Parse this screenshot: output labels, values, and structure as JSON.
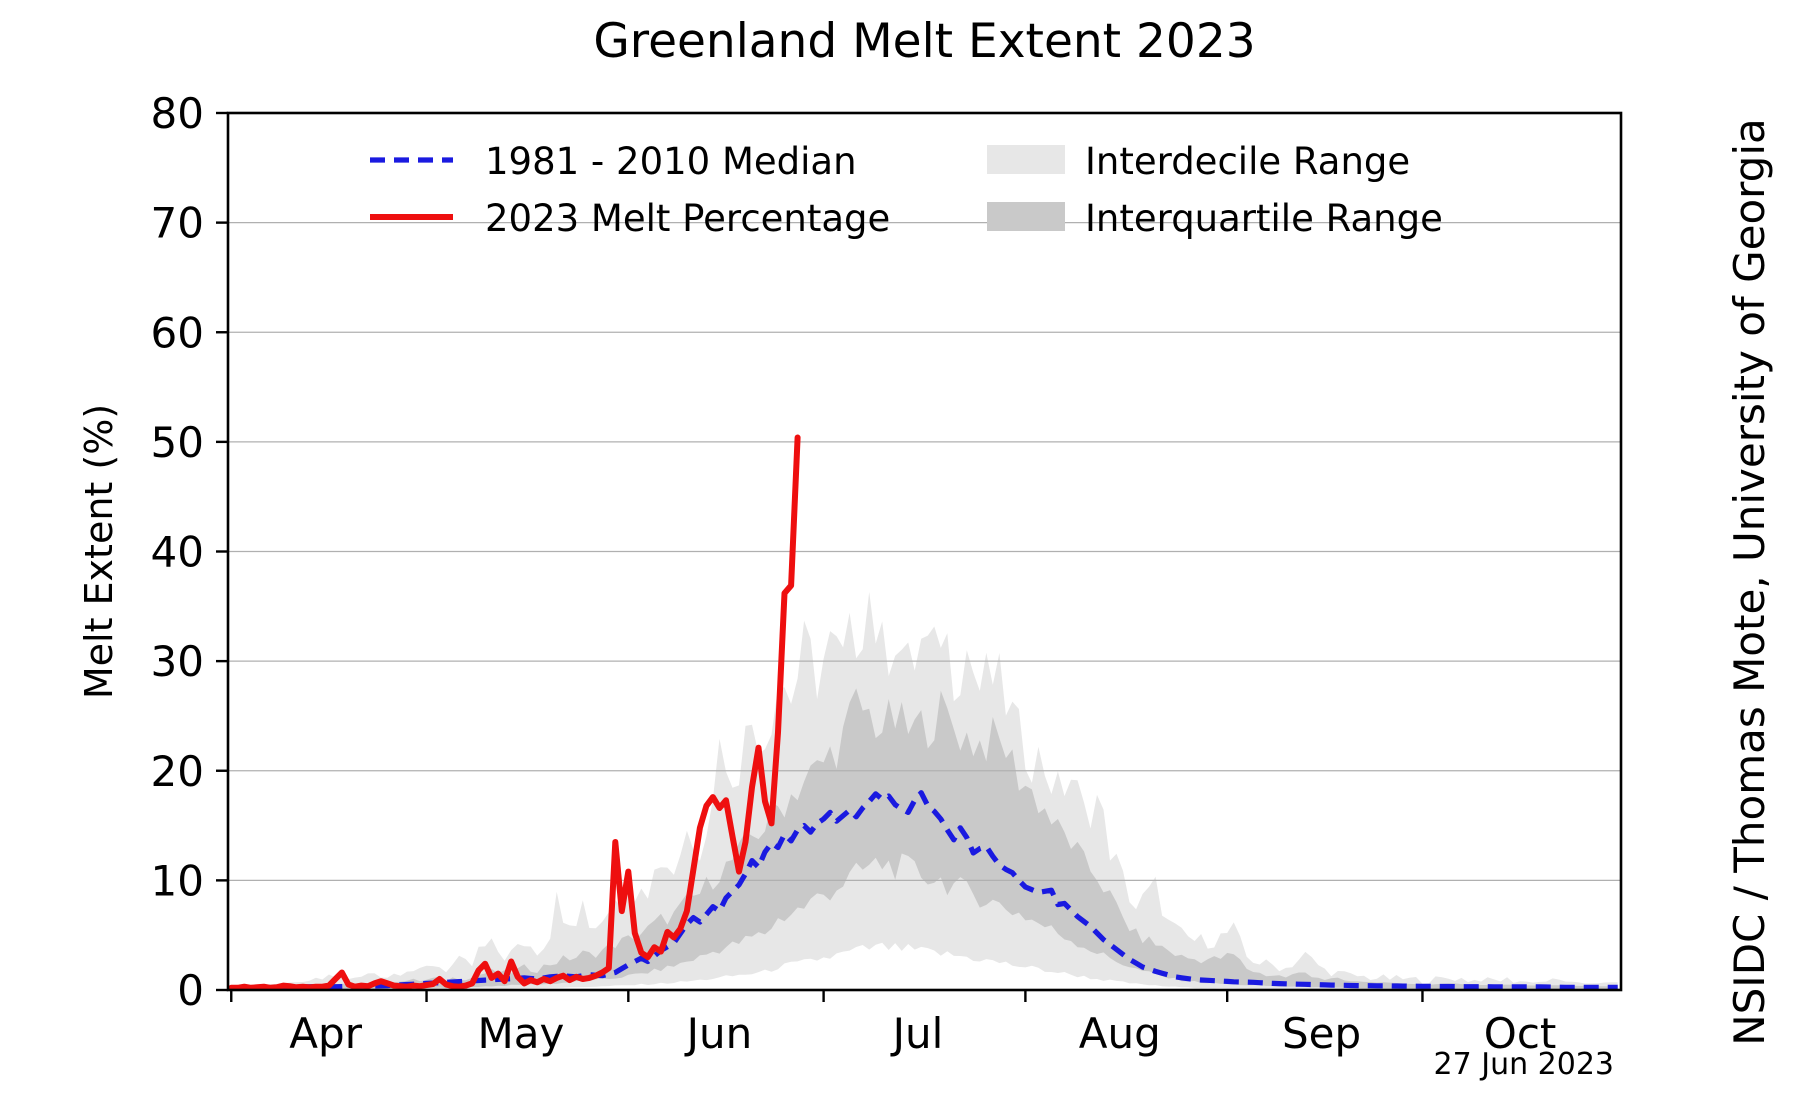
{
  "labels": {
    "title": "Greenland Melt Extent 2023",
    "y_axis_label": "Melt Extent (%)",
    "credit": "NSIDC / Thomas Mote, University of Georgia",
    "datestamp": "27 Jun 2023"
  },
  "legend": {
    "items": [
      {
        "label": "1981 - 2010 Median",
        "type": "dashed-line",
        "color": "#1a1ae0"
      },
      {
        "label": "2023 Melt Percentage",
        "type": "solid-line",
        "color": "#ee0f0f"
      },
      {
        "label": "Interdecile Range",
        "type": "patch",
        "color": "#e7e7e7"
      },
      {
        "label": "Interquartile Range",
        "type": "patch",
        "color": "#c9c9c9"
      }
    ]
  },
  "axes": {
    "y_ticks": [
      "0",
      "10",
      "20",
      "30",
      "40",
      "50",
      "60",
      "70",
      "80"
    ],
    "x_ticklabels": [
      "Apr",
      "May",
      "Jun",
      "Jul",
      "Aug",
      "Sep",
      "Oct"
    ],
    "ylim": [
      0,
      80
    ],
    "grid": "horizontal-only"
  },
  "colors": {
    "median_line": "#1a1ae0",
    "melt_line": "#ee0f0f",
    "interdecile_fill": "#e7e7e7",
    "interquartile_fill": "#c9c9c9",
    "gridline": "#b0b0b0",
    "axis": "#000000",
    "background": "#ffffff"
  },
  "chart_data": {
    "type": "line",
    "title": "Greenland Melt Extent 2023",
    "xlabel": "",
    "ylabel": "Melt Extent (%)",
    "ylim": [
      0,
      80
    ],
    "x_domain_days": 214,
    "x_start_date": "2023-04-01",
    "x_end_date": "2023-10-31",
    "month_tick_day_index": [
      0,
      30,
      61,
      91,
      122,
      153,
      183
    ],
    "month_label_day_index": [
      14.5,
      44.5,
      75,
      105.5,
      136.5,
      167.5,
      198
    ],
    "legend_position": "upper-left-inside",
    "series": [
      {
        "name": "2023 Melt Percentage",
        "style": "solid",
        "start_day": 0,
        "daily_values": [
          0.2,
          0.2,
          0.3,
          0.2,
          0.25,
          0.3,
          0.2,
          0.25,
          0.4,
          0.35,
          0.25,
          0.3,
          0.25,
          0.3,
          0.3,
          0.4,
          1.0,
          1.6,
          0.5,
          0.3,
          0.4,
          0.35,
          0.6,
          0.8,
          0.6,
          0.4,
          0.35,
          0.3,
          0.4,
          0.35,
          0.45,
          0.55,
          1.0,
          0.5,
          0.35,
          0.3,
          0.4,
          0.6,
          1.8,
          2.4,
          1.1,
          1.5,
          0.8,
          2.6,
          1.2,
          0.6,
          0.9,
          0.7,
          1.0,
          0.8,
          1.1,
          1.3,
          0.9,
          1.2,
          1.0,
          1.1,
          1.3,
          1.6,
          2.0,
          13.5,
          7.2,
          10.8,
          5.2,
          3.4,
          3.0,
          3.9,
          3.5,
          5.3,
          4.8,
          5.6,
          7.2,
          11.0,
          14.8,
          16.8,
          17.6,
          16.6,
          17.3,
          14.0,
          10.8,
          13.5,
          18.5,
          22.1,
          17.2,
          15.2,
          23.5,
          36.2,
          36.9,
          50.4
        ]
      },
      {
        "name": "1981 - 2010 Median",
        "style": "dashed",
        "keypoints_day_value": [
          [
            0,
            0.2
          ],
          [
            4,
            0.2
          ],
          [
            8,
            0.25
          ],
          [
            12,
            0.3
          ],
          [
            16,
            0.3
          ],
          [
            20,
            0.35
          ],
          [
            24,
            0.4
          ],
          [
            27,
            0.5
          ],
          [
            30,
            0.6
          ],
          [
            33,
            0.7
          ],
          [
            36,
            0.8
          ],
          [
            39,
            0.9
          ],
          [
            42,
            1.0
          ],
          [
            45,
            1.1
          ],
          [
            47,
            1.0
          ],
          [
            49,
            1.2
          ],
          [
            51,
            1.3
          ],
          [
            53,
            1.2
          ],
          [
            55,
            1.4
          ],
          [
            57,
            1.3
          ],
          [
            59,
            1.6
          ],
          [
            61,
            2.3
          ],
          [
            63,
            2.9
          ],
          [
            64,
            2.6
          ],
          [
            66,
            3.6
          ],
          [
            68,
            4.3
          ],
          [
            70,
            6.0
          ],
          [
            71,
            6.6
          ],
          [
            72,
            6.2
          ],
          [
            74,
            7.6
          ],
          [
            75,
            7.2
          ],
          [
            76,
            8.4
          ],
          [
            78,
            9.6
          ],
          [
            79,
            10.6
          ],
          [
            80,
            11.8
          ],
          [
            81,
            11.2
          ],
          [
            82,
            12.6
          ],
          [
            83,
            13.4
          ],
          [
            84,
            13.0
          ],
          [
            85,
            14.2
          ],
          [
            86,
            13.6
          ],
          [
            87,
            14.6
          ],
          [
            88,
            15.0
          ],
          [
            89,
            14.4
          ],
          [
            90,
            15.2
          ],
          [
            91,
            15.6
          ],
          [
            92,
            16.2
          ],
          [
            93,
            15.4
          ],
          [
            94,
            15.9
          ],
          [
            95,
            16.4
          ],
          [
            96,
            15.8
          ],
          [
            97,
            16.6
          ],
          [
            98,
            17.2
          ],
          [
            99,
            17.9
          ],
          [
            100,
            17.4
          ],
          [
            101,
            17.7
          ],
          [
            102,
            16.9
          ],
          [
            103,
            16.5
          ],
          [
            104,
            16.2
          ],
          [
            105,
            17.3
          ],
          [
            106,
            18.0
          ],
          [
            107,
            16.8
          ],
          [
            108,
            16.3
          ],
          [
            109,
            15.6
          ],
          [
            110,
            14.6
          ],
          [
            111,
            13.7
          ],
          [
            112,
            14.8
          ],
          [
            113,
            13.9
          ],
          [
            114,
            12.5
          ],
          [
            115,
            12.9
          ],
          [
            116,
            13.1
          ],
          [
            117,
            12.2
          ],
          [
            118,
            11.4
          ],
          [
            119,
            11.0
          ],
          [
            120,
            10.7
          ],
          [
            121,
            10.0
          ],
          [
            122,
            9.4
          ],
          [
            124,
            8.9
          ],
          [
            126,
            9.1
          ],
          [
            127,
            7.8
          ],
          [
            128,
            7.9
          ],
          [
            129,
            7.3
          ],
          [
            130,
            6.7
          ],
          [
            132,
            5.8
          ],
          [
            134,
            4.6
          ],
          [
            136,
            3.7
          ],
          [
            138,
            2.8
          ],
          [
            140,
            2.1
          ],
          [
            142,
            1.7
          ],
          [
            145,
            1.2
          ],
          [
            148,
            0.95
          ],
          [
            151,
            0.85
          ],
          [
            154,
            0.75
          ],
          [
            157,
            0.7
          ],
          [
            160,
            0.6
          ],
          [
            163,
            0.55
          ],
          [
            166,
            0.5
          ],
          [
            169,
            0.45
          ],
          [
            173,
            0.4
          ],
          [
            177,
            0.38
          ],
          [
            181,
            0.35
          ],
          [
            185,
            0.33
          ],
          [
            189,
            0.3
          ],
          [
            193,
            0.3
          ],
          [
            197,
            0.28
          ],
          [
            201,
            0.28
          ],
          [
            205,
            0.25
          ],
          [
            209,
            0.25
          ],
          [
            213,
            0.25
          ]
        ]
      }
    ],
    "bands": {
      "description": "keypoints [day, interdecile_top, interquartile_top, interquartile_bottom, interdecile_bottom] in percent",
      "keypoints": [
        [
          0,
          0.4,
          0.2,
          0,
          0
        ],
        [
          4,
          0.45,
          0.25,
          0,
          0
        ],
        [
          8,
          0.6,
          0.3,
          0,
          0
        ],
        [
          12,
          0.8,
          0.4,
          0.05,
          0
        ],
        [
          15,
          1.1,
          0.5,
          0.05,
          0
        ],
        [
          17,
          1.3,
          0.55,
          0.08,
          0
        ],
        [
          19,
          0.95,
          0.5,
          0.08,
          0
        ],
        [
          22,
          1.6,
          0.7,
          0.1,
          0
        ],
        [
          24,
          1.25,
          0.65,
          0.1,
          0
        ],
        [
          27,
          2.0,
          0.85,
          0.12,
          0
        ],
        [
          29,
          1.6,
          0.8,
          0.15,
          0.05
        ],
        [
          31,
          2.4,
          1.0,
          0.2,
          0.05
        ],
        [
          33,
          1.9,
          0.95,
          0.2,
          0.05
        ],
        [
          35,
          2.6,
          1.2,
          0.25,
          0.08
        ],
        [
          37,
          2.2,
          1.1,
          0.28,
          0.08
        ],
        [
          38,
          3.6,
          1.4,
          0.3,
          0.1
        ],
        [
          40,
          4.1,
          1.65,
          0.35,
          0.1
        ],
        [
          42,
          3.0,
          1.5,
          0.4,
          0.12
        ],
        [
          44,
          3.8,
          1.8,
          0.45,
          0.15
        ],
        [
          45,
          4.3,
          2.0,
          0.5,
          0.15
        ],
        [
          47,
          3.6,
          1.9,
          0.5,
          0.18
        ],
        [
          49,
          5.0,
          2.4,
          0.55,
          0.2
        ],
        [
          50,
          10.0,
          2.6,
          0.6,
          0.2
        ],
        [
          51,
          5.6,
          2.8,
          0.65,
          0.22
        ],
        [
          53,
          6.0,
          3.0,
          0.75,
          0.25
        ],
        [
          54,
          7.4,
          3.3,
          0.8,
          0.28
        ],
        [
          55,
          5.7,
          3.2,
          0.85,
          0.3
        ],
        [
          57,
          6.6,
          3.6,
          0.95,
          0.32
        ],
        [
          59,
          9.0,
          4.2,
          1.1,
          0.38
        ],
        [
          61,
          8.2,
          4.6,
          1.3,
          0.42
        ],
        [
          63,
          10.4,
          5.2,
          1.5,
          0.5
        ],
        [
          64,
          9.4,
          5.5,
          1.6,
          0.52
        ],
        [
          66,
          12.0,
          6.4,
          1.9,
          0.6
        ],
        [
          68,
          11.0,
          6.8,
          2.2,
          0.68
        ],
        [
          70,
          14.5,
          8.0,
          2.6,
          0.78
        ],
        [
          72,
          13.4,
          8.8,
          3.0,
          0.9
        ],
        [
          74,
          17.0,
          10.2,
          3.5,
          1.05
        ],
        [
          75,
          25.0,
          10.8,
          3.7,
          1.1
        ],
        [
          76,
          19.0,
          11.2,
          3.9,
          1.2
        ],
        [
          78,
          21.0,
          12.4,
          4.3,
          1.35
        ],
        [
          80,
          24.6,
          14.0,
          4.8,
          1.5
        ],
        [
          82,
          23.2,
          15.0,
          5.2,
          1.65
        ],
        [
          84,
          28.4,
          16.6,
          6.4,
          2.1
        ],
        [
          86,
          27.0,
          17.8,
          7.0,
          2.3
        ],
        [
          88,
          30.6,
          19.2,
          7.6,
          2.5
        ],
        [
          90,
          29.0,
          20.0,
          8.4,
          2.8
        ],
        [
          92,
          31.0,
          21.5,
          9.0,
          3.0
        ],
        [
          94,
          29.5,
          23.0,
          9.8,
          3.3
        ],
        [
          96,
          33.0,
          26.0,
          10.5,
          3.6
        ],
        [
          98,
          36.4,
          25.0,
          11.2,
          3.8
        ],
        [
          100,
          30.5,
          24.0,
          11.5,
          3.9
        ],
        [
          102,
          33.1,
          24.6,
          11.3,
          3.8
        ],
        [
          104,
          29.0,
          23.5,
          11.0,
          3.7
        ],
        [
          106,
          31.5,
          24.0,
          10.6,
          3.55
        ],
        [
          108,
          30.0,
          24.8,
          10.2,
          3.4
        ],
        [
          109,
          33.5,
          25.3,
          10.0,
          3.3
        ],
        [
          111,
          29.5,
          24.0,
          9.5,
          3.15
        ],
        [
          113,
          31.0,
          23.0,
          9.0,
          3.0
        ],
        [
          115,
          27.5,
          22.5,
          8.5,
          2.8
        ],
        [
          117,
          28.5,
          22.8,
          8.0,
          2.6
        ],
        [
          119,
          26.5,
          22.0,
          7.5,
          2.4
        ],
        [
          121,
          23.0,
          19.5,
          7.0,
          2.2
        ],
        [
          123,
          21.5,
          18.0,
          6.4,
          2.0
        ],
        [
          125,
          20.5,
          16.5,
          5.8,
          1.8
        ],
        [
          127,
          18.0,
          14.5,
          5.2,
          1.6
        ],
        [
          129,
          19.5,
          13.5,
          4.6,
          1.4
        ],
        [
          131,
          16.0,
          11.5,
          4.0,
          1.2
        ],
        [
          133,
          17.5,
          10.5,
          3.4,
          1.0
        ],
        [
          135,
          13.0,
          8.5,
          2.9,
          0.85
        ],
        [
          137,
          10.0,
          6.5,
          2.4,
          0.7
        ],
        [
          139,
          7.5,
          5.0,
          1.9,
          0.55
        ],
        [
          142,
          9.4,
          4.2,
          1.4,
          0.4
        ],
        [
          144,
          6.0,
          3.6,
          1.1,
          0.32
        ],
        [
          146,
          5.0,
          3.0,
          0.9,
          0.26
        ],
        [
          148,
          4.5,
          2.8,
          0.75,
          0.2
        ],
        [
          151,
          4.5,
          2.8,
          0.6,
          0.18
        ],
        [
          154,
          5.5,
          3.2,
          0.5,
          0.15
        ],
        [
          156,
          3.0,
          2.0,
          0.45,
          0.12
        ],
        [
          158,
          2.5,
          1.5,
          0.4,
          0.1
        ],
        [
          162,
          2.0,
          1.2,
          0.3,
          0.08
        ],
        [
          165,
          3.2,
          1.6,
          0.3,
          0.05
        ],
        [
          168,
          1.8,
          1.0,
          0.22,
          0.03
        ],
        [
          172,
          1.3,
          0.8,
          0.18,
          0
        ],
        [
          176,
          1.1,
          0.7,
          0.15,
          0
        ],
        [
          180,
          1.0,
          0.6,
          0.12,
          0
        ],
        [
          184,
          0.9,
          0.5,
          0.1,
          0
        ],
        [
          188,
          1.1,
          0.6,
          0.1,
          0
        ],
        [
          192,
          0.8,
          0.45,
          0.08,
          0
        ],
        [
          196,
          0.95,
          0.5,
          0.08,
          0
        ],
        [
          200,
          0.7,
          0.4,
          0.05,
          0
        ],
        [
          204,
          0.85,
          0.45,
          0.05,
          0
        ],
        [
          208,
          0.6,
          0.35,
          0.03,
          0
        ],
        [
          213,
          0.7,
          0.35,
          0.03,
          0
        ]
      ]
    }
  }
}
